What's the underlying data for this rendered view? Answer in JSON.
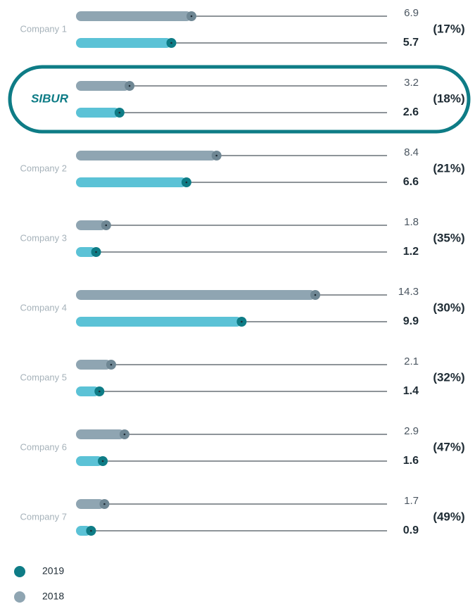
{
  "chart_data": {
    "type": "paired-bar",
    "categories": [
      "Company 1",
      "SIBUR",
      "Company 2",
      "Company 3",
      "Company 4",
      "Company 5",
      "Company 6",
      "Company 7"
    ],
    "highlight": "SIBUR",
    "series": [
      {
        "name": "2018",
        "color": "#8fa5b2",
        "dot_color": "#6f8794",
        "values": [
          6.9,
          3.2,
          8.4,
          1.8,
          14.3,
          2.1,
          2.9,
          1.7
        ]
      },
      {
        "name": "2019",
        "color": "#0e7c86",
        "bar_color": "#5bc2d6",
        "values": [
          5.7,
          2.6,
          6.6,
          1.2,
          9.9,
          1.4,
          1.6,
          0.9
        ]
      }
    ],
    "change_labels": [
      "(17%)",
      "(18%)",
      "(21%)",
      "(35%)",
      "(30%)",
      "(32%)",
      "(47%)",
      "(49%)"
    ]
  }
}
